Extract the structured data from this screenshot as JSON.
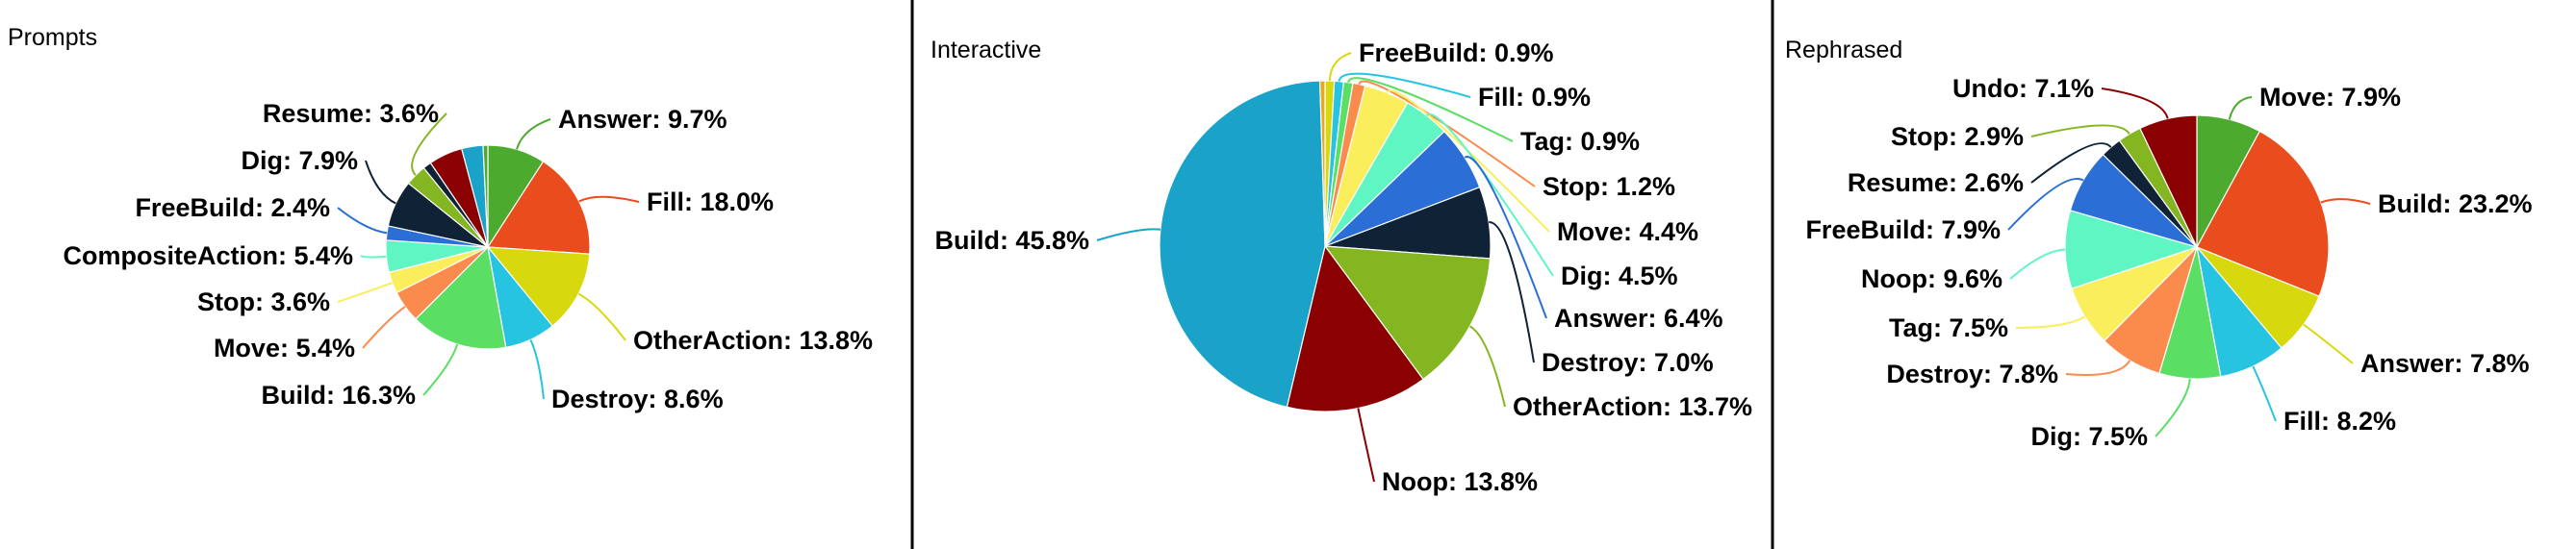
{
  "chart_data": [
    {
      "type": "pie",
      "title": "Prompts",
      "slices": [
        {
          "label": "Answer",
          "value": 9.7,
          "color": "#4caa2e"
        },
        {
          "label": "Fill",
          "value": 18.0,
          "color": "#ea4d1d"
        },
        {
          "label": "OtherAction",
          "value": 13.8,
          "color": "#d8d80f"
        },
        {
          "label": "Destroy",
          "value": 8.6,
          "color": "#26c4e0"
        },
        {
          "label": "Build",
          "value": 16.3,
          "color": "#5ade64"
        },
        {
          "label": "Move",
          "value": 5.4,
          "color": "#fb8a4d"
        },
        {
          "label": "Stop",
          "value": 3.6,
          "color": "#fbee5c"
        },
        {
          "label": "CompositeAction",
          "value": 5.4,
          "color": "#60f6c4"
        },
        {
          "label": "FreeBuild",
          "value": 2.4,
          "color": "#2b6ed6"
        },
        {
          "label": "Dig",
          "value": 7.9,
          "color": "#0f2236"
        },
        {
          "label": "Resume",
          "value": 3.6,
          "color": "#84b621"
        }
      ],
      "display_labels": [
        "Answer: 9.7%",
        "Fill: 18.0%",
        "OtherAction: 13.8%",
        "Destroy: 8.6%",
        "Build: 16.3%",
        "Move: 5.4%",
        "Stop: 3.6%",
        "CompositeAction: 5.4%",
        "FreeBuild: 2.4%",
        "Dig: 7.9%",
        "Resume: 3.6%"
      ],
      "extra_slices": [
        {
          "value": 1.4,
          "color": "#0f2236"
        },
        {
          "value": 5.7,
          "color": "#8b0000"
        },
        {
          "value": 3.6,
          "color": "#1aa2c9"
        },
        {
          "value": 0.8,
          "color": "#4caa2e"
        }
      ]
    },
    {
      "type": "pie",
      "title": "Interactive",
      "slices": [
        {
          "label": "FreeBuild",
          "value": 0.9,
          "color": "#d8d80f"
        },
        {
          "label": "Fill",
          "value": 0.9,
          "color": "#26c4e0"
        },
        {
          "label": "Tag",
          "value": 0.9,
          "color": "#5ade64"
        },
        {
          "label": "Stop",
          "value": 1.2,
          "color": "#fb8a4d"
        },
        {
          "label": "Move",
          "value": 4.4,
          "color": "#fbee5c"
        },
        {
          "label": "Dig",
          "value": 4.5,
          "color": "#60f6c4"
        },
        {
          "label": "Answer",
          "value": 6.4,
          "color": "#2b6ed6"
        },
        {
          "label": "Destroy",
          "value": 7.0,
          "color": "#0f2236"
        },
        {
          "label": "OtherAction",
          "value": 13.7,
          "color": "#84b621"
        },
        {
          "label": "Noop",
          "value": 13.8,
          "color": "#8b0000"
        },
        {
          "label": "Build",
          "value": 45.8,
          "color": "#1aa2c9"
        }
      ],
      "display_labels": [
        "FreeBuild: 0.9%",
        "Fill: 0.9%",
        "Tag: 0.9%",
        "Stop: 1.2%",
        "Move: 4.4%",
        "Dig: 4.5%",
        "Answer: 6.4%",
        "Destroy: 7.0%",
        "OtherAction: 13.7%",
        "Noop: 13.8%",
        "Build: 45.8%"
      ],
      "extra_slices": [
        {
          "value": 0.5,
          "color": "#e8a820"
        }
      ]
    },
    {
      "type": "pie",
      "title": "Rephrased",
      "slices": [
        {
          "label": "Move",
          "value": 7.9,
          "color": "#4caa2e"
        },
        {
          "label": "Build",
          "value": 23.2,
          "color": "#ea4d1d"
        },
        {
          "label": "Answer",
          "value": 7.8,
          "color": "#d8d80f"
        },
        {
          "label": "Fill",
          "value": 8.2,
          "color": "#26c4e0"
        },
        {
          "label": "Dig",
          "value": 7.5,
          "color": "#5ade64"
        },
        {
          "label": "Destroy",
          "value": 7.8,
          "color": "#fb8a4d"
        },
        {
          "label": "Tag",
          "value": 7.5,
          "color": "#fbee5c"
        },
        {
          "label": "Noop",
          "value": 9.6,
          "color": "#60f6c4"
        },
        {
          "label": "FreeBuild",
          "value": 7.9,
          "color": "#2b6ed6"
        },
        {
          "label": "Resume",
          "value": 2.6,
          "color": "#0f2236"
        },
        {
          "label": "Stop",
          "value": 2.9,
          "color": "#84b621"
        },
        {
          "label": "Undo",
          "value": 7.1,
          "color": "#8b0000"
        }
      ],
      "display_labels": [
        "Move: 7.9%",
        "Build: 23.2%",
        "Answer: 7.8%",
        "Fill: 8.2%",
        "Dig: 7.5%",
        "Destroy: 7.8%",
        "Tag: 7.5%",
        "Noop: 9.6%",
        "FreeBuild: 7.9%",
        "Resume: 2.6%",
        "Stop: 2.9%",
        "Undo: 7.1%"
      ],
      "extra_slices": []
    }
  ]
}
